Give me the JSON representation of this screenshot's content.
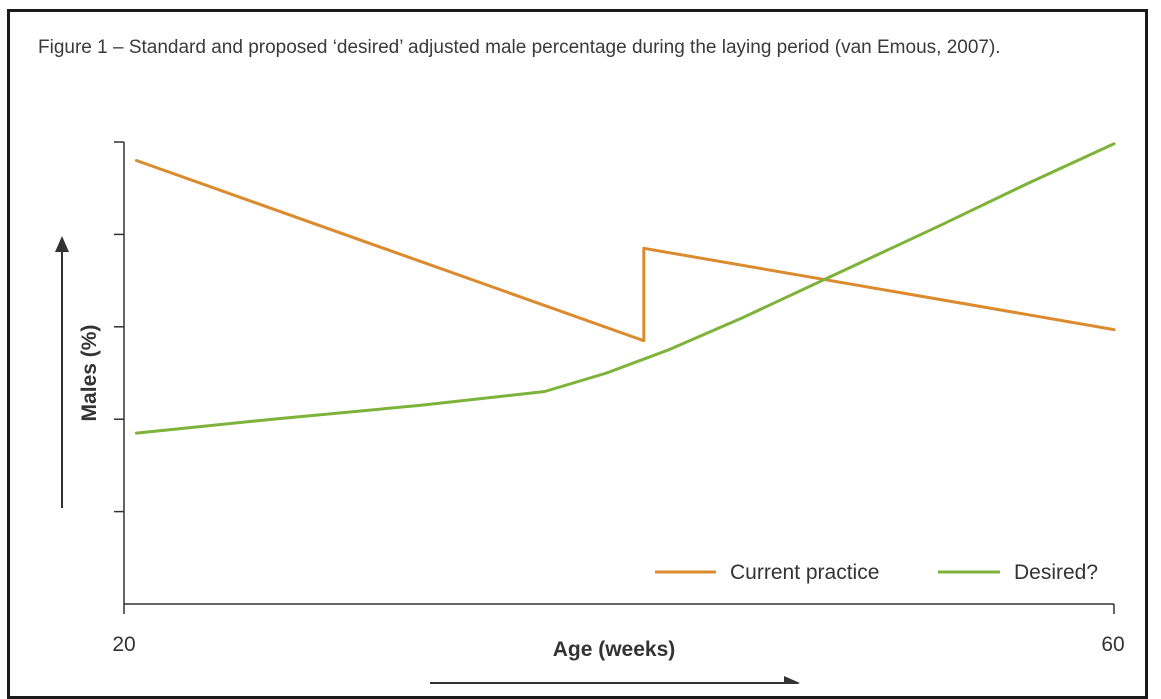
{
  "figure": {
    "caption": "Figure 1 – Standard and proposed ‘desired’ adjusted male percentage during the laying period (van Emous, 2007)."
  },
  "chart_data": {
    "type": "line",
    "xlabel": "Age (weeks)",
    "ylabel": "Males (%)",
    "x_tick_labels": [
      "20",
      "60"
    ],
    "xlim": [
      20,
      60
    ],
    "ylim": [
      0,
      5
    ],
    "y_ticks": [
      1,
      2,
      3,
      4,
      5
    ],
    "legend_position": "bottom-right",
    "series": [
      {
        "name": "Current practice",
        "color": "#dc8a2e",
        "points": [
          [
            20.5,
            4.8
          ],
          [
            41.0,
            2.85
          ],
          [
            41.0,
            3.85
          ],
          [
            60.0,
            2.97
          ]
        ]
      },
      {
        "name": "Desired?",
        "color": "#7db33a",
        "points": [
          [
            20.5,
            1.85
          ],
          [
            26.0,
            2.0
          ],
          [
            32.0,
            2.15
          ],
          [
            37.0,
            2.3
          ],
          [
            39.5,
            2.5
          ],
          [
            42.0,
            2.75
          ],
          [
            45.0,
            3.1
          ],
          [
            49.0,
            3.6
          ],
          [
            53.0,
            4.1
          ],
          [
            56.5,
            4.55
          ],
          [
            60.0,
            4.98
          ]
        ]
      }
    ]
  }
}
